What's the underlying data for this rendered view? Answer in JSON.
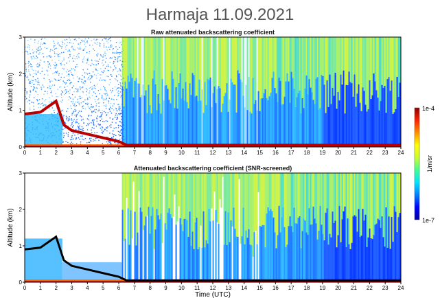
{
  "figure": {
    "title": "Harmaja 11.09.2021"
  },
  "chart_data": [
    {
      "type": "heatmap",
      "title": "Raw attenuated backscattering coefficient",
      "xlabel": "",
      "ylabel": "Altitude (km)",
      "xlim": [
        0,
        24
      ],
      "ylim": [
        0,
        3
      ],
      "x_ticks": [
        "0",
        "1",
        "2",
        "3",
        "4",
        "5",
        "6",
        "7",
        "8",
        "9",
        "10",
        "11",
        "12",
        "13",
        "14",
        "15",
        "16",
        "17",
        "18",
        "19",
        "20",
        "21",
        "22",
        "23",
        "24"
      ],
      "y_ticks": [
        "0",
        "1",
        "2",
        "3"
      ],
      "layers": [
        {
          "x": [
            0,
            1,
            2,
            2.5,
            3,
            4,
            5,
            6,
            6.5,
            24
          ],
          "altitude_km": [
            0.9,
            0.95,
            1.25,
            0.6,
            0.45,
            0.35,
            0.25,
            0.15,
            0.05,
            0.05
          ]
        }
      ]
    },
    {
      "type": "heatmap",
      "title": "Attenuated backscattering coefficient (SNR-screened)",
      "xlabel": "Time (UTC)",
      "ylabel": "Altitude (km)",
      "xlim": [
        0,
        24
      ],
      "ylim": [
        0,
        3
      ],
      "x_ticks": [
        "0",
        "1",
        "2",
        "3",
        "4",
        "5",
        "6",
        "7",
        "8",
        "9",
        "10",
        "11",
        "12",
        "13",
        "14",
        "15",
        "16",
        "17",
        "18",
        "19",
        "20",
        "21",
        "22",
        "23",
        "24"
      ],
      "y_ticks": [
        "0",
        "1",
        "2",
        "3"
      ]
    }
  ],
  "colorbar": {
    "label": "1/m/sr",
    "max_label": "1e-4",
    "min_label": "1e-7",
    "scale": "log",
    "colors": [
      "#0000a0",
      "#0000ff",
      "#0080ff",
      "#00e5ff",
      "#40ff90",
      "#c8ff30",
      "#ffff00",
      "#ff9000",
      "#ff2000",
      "#900000"
    ]
  }
}
